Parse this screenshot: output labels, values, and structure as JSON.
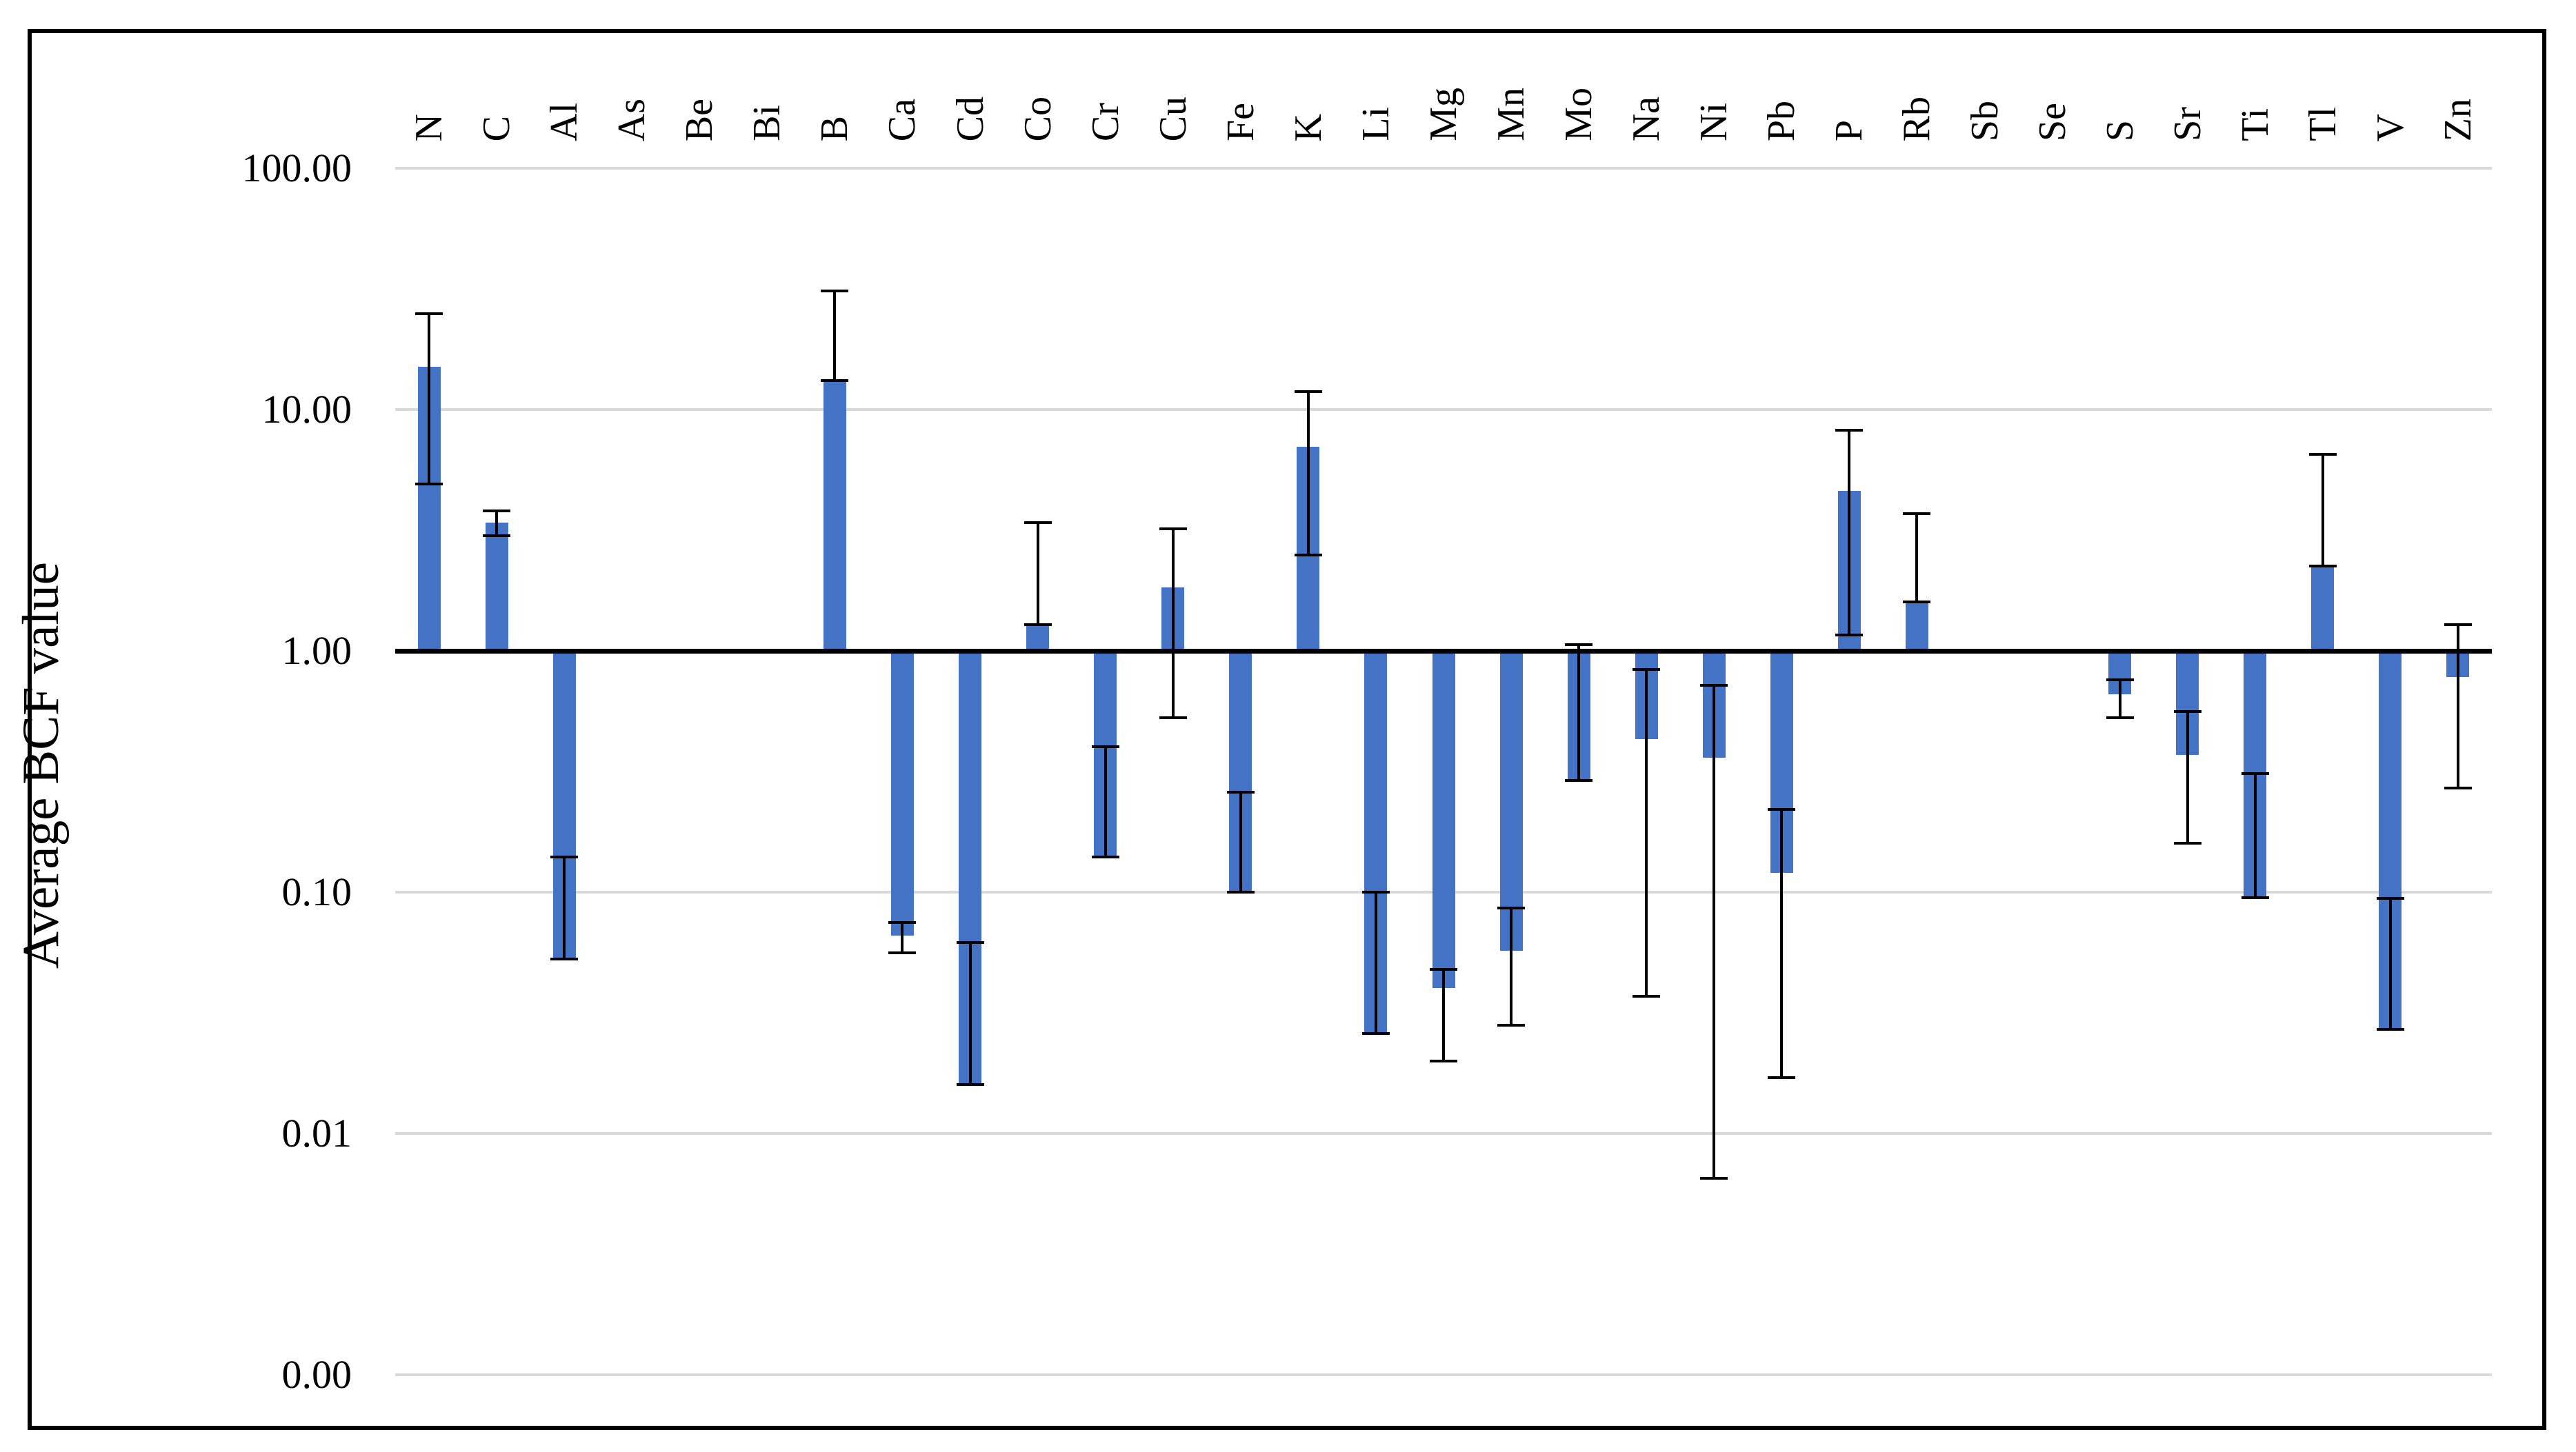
{
  "figure": {
    "ylabel": "Average BCF value",
    "bar_color": "#4472C4",
    "gridline_color": "#d9d9d9",
    "axis_color": "#000000",
    "frame_color": "#000000",
    "background": "#ffffff"
  },
  "y_axis": {
    "scale": "log",
    "tick_labels": [
      "100.00",
      "10.00",
      "1.00",
      "0.10",
      "0.01",
      "0.00"
    ],
    "tick_values": [
      100,
      10,
      1,
      0.1,
      0.01,
      0.001
    ]
  },
  "chart_data": {
    "type": "bar",
    "title": "",
    "xlabel": "",
    "ylabel": "Average BCF value",
    "yscale": "log",
    "ylim": [
      0.001,
      100
    ],
    "baseline": 1.0,
    "grid": true,
    "legend": false,
    "categories": [
      "N",
      "C",
      "Al",
      "As",
      "Be",
      "Bi",
      "B",
      "Ca",
      "Cd",
      "Co",
      "Cr",
      "Cu",
      "Fe",
      "K",
      "Li",
      "Mg",
      "Mn",
      "Mo",
      "Na",
      "Ni",
      "Pb",
      "P",
      "Rb",
      "Sb",
      "Se",
      "S",
      "Sr",
      "Ti",
      "Tl",
      "V",
      "Zn"
    ],
    "series": [
      {
        "name": "Average BCF value",
        "values": [
          15,
          3.4,
          0.053,
          null,
          null,
          null,
          13.2,
          0.066,
          0.016,
          1.28,
          0.14,
          1.83,
          0.1,
          7.0,
          0.026,
          0.04,
          0.057,
          0.29,
          0.43,
          0.36,
          0.12,
          4.6,
          1.6,
          null,
          null,
          0.66,
          0.37,
          0.095,
          2.25,
          0.027,
          0.78
        ],
        "error_low": [
          4.9,
          3.0,
          0.053,
          null,
          null,
          null,
          13.2,
          0.056,
          0.016,
          1.28,
          0.14,
          0.53,
          0.1,
          2.5,
          0.026,
          0.02,
          0.028,
          0.29,
          0.037,
          0.0065,
          0.017,
          1.16,
          1.6,
          null,
          null,
          0.53,
          0.16,
          0.095,
          2.25,
          0.027,
          0.27
        ],
        "error_high": [
          25,
          3.8,
          0.14,
          null,
          null,
          null,
          31,
          0.075,
          0.062,
          3.4,
          0.4,
          3.2,
          0.26,
          11.9,
          0.1,
          0.048,
          0.086,
          1.06,
          0.84,
          0.72,
          0.22,
          8.2,
          3.7,
          null,
          null,
          0.76,
          0.56,
          0.31,
          6.5,
          0.094,
          1.28
        ]
      }
    ]
  }
}
